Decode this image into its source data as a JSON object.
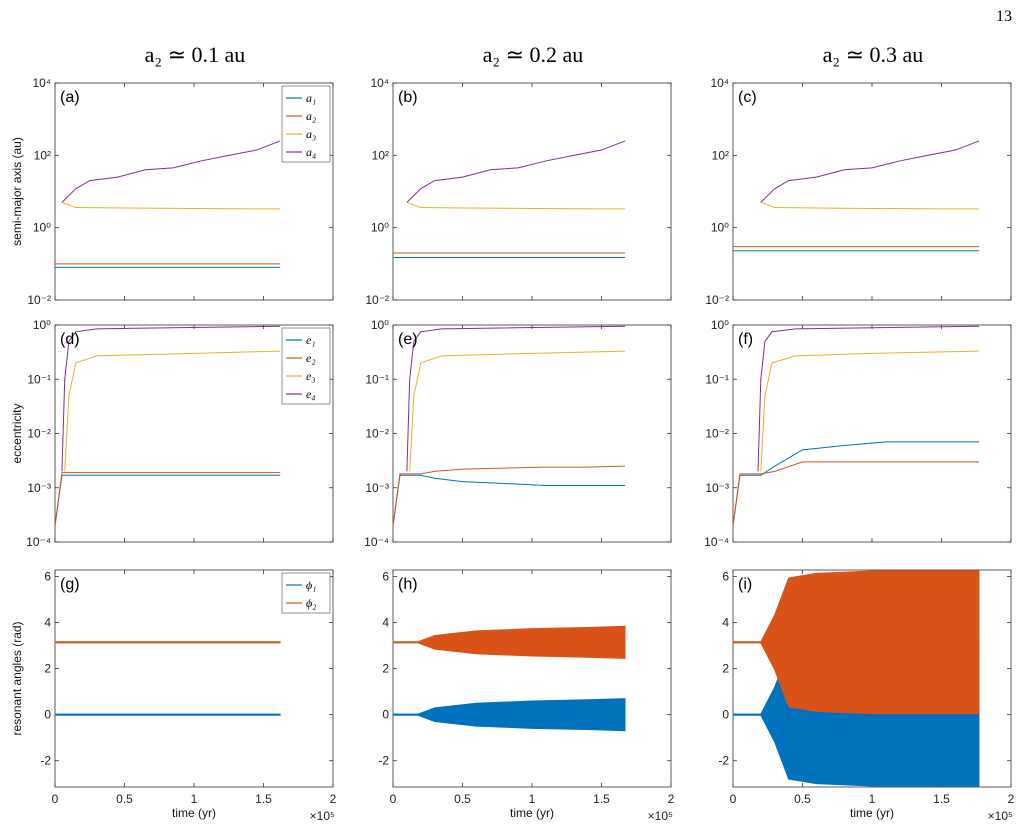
{
  "page_number": "13",
  "column_titles": [
    "a₂ ≃ 0.1 au",
    "a₂ ≃ 0.2 au",
    "a₂ ≃ 0.3 au"
  ],
  "colors": {
    "s1": "#0072BD",
    "s2": "#D95319",
    "s3": "#EDB120",
    "s4": "#7E2F8E"
  },
  "x_axis": {
    "label": "time (yr)",
    "multiplier": "×10⁵",
    "ticks": [
      "0",
      "0.5",
      "1",
      "1.5",
      "2"
    ],
    "lim": [
      0,
      2
    ]
  },
  "chart_data": [
    {
      "id": "a",
      "label": "(a)",
      "type": "line",
      "ylabel": "semi-major axis (au)",
      "yscale": "log",
      "ylim": [
        0.01,
        10000
      ],
      "yticks": [
        "10⁻²",
        "10⁰",
        "10²",
        "10⁴"
      ],
      "legend": [
        "a₁",
        "a₂",
        "a₃",
        "a₄"
      ],
      "series": [
        {
          "name": "a₁",
          "x": [
            0,
            1.62
          ],
          "y": [
            0.08,
            0.08
          ]
        },
        {
          "name": "a₂",
          "x": [
            0,
            1.62
          ],
          "y": [
            0.1,
            0.1
          ]
        },
        {
          "name": "a₃",
          "x": [
            0.05,
            0.15,
            0.5,
            1.0,
            1.5,
            1.62
          ],
          "y": [
            5,
            3.6,
            3.5,
            3.4,
            3.3,
            3.3
          ]
        },
        {
          "name": "a₄",
          "x": [
            0.05,
            0.15,
            0.25,
            0.45,
            0.65,
            0.85,
            1.05,
            1.25,
            1.45,
            1.62
          ],
          "y": [
            5,
            12,
            20,
            25,
            40,
            45,
            70,
            100,
            140,
            250
          ]
        }
      ]
    },
    {
      "id": "b",
      "label": "(b)",
      "type": "line",
      "ylabel": "",
      "yscale": "log",
      "ylim": [
        0.01,
        10000
      ],
      "yticks": [
        "10⁻²",
        "10⁰",
        "10²",
        "10⁴"
      ],
      "series": [
        {
          "name": "a₁",
          "x": [
            0,
            1.67
          ],
          "y": [
            0.15,
            0.15
          ]
        },
        {
          "name": "a₂",
          "x": [
            0,
            1.67
          ],
          "y": [
            0.2,
            0.2
          ]
        },
        {
          "name": "a₃",
          "x": [
            0.1,
            0.2,
            0.5,
            1.0,
            1.5,
            1.67
          ],
          "y": [
            5,
            3.6,
            3.5,
            3.4,
            3.3,
            3.3
          ]
        },
        {
          "name": "a₄",
          "x": [
            0.1,
            0.2,
            0.3,
            0.5,
            0.7,
            0.9,
            1.1,
            1.3,
            1.5,
            1.67
          ],
          "y": [
            5,
            12,
            20,
            25,
            40,
            45,
            70,
            100,
            140,
            250
          ]
        }
      ]
    },
    {
      "id": "c",
      "label": "(c)",
      "type": "line",
      "ylabel": "",
      "yscale": "log",
      "ylim": [
        0.01,
        10000
      ],
      "yticks": [
        "10⁻²",
        "10⁰",
        "10²",
        "10⁴"
      ],
      "series": [
        {
          "name": "a₁",
          "x": [
            0,
            1.77
          ],
          "y": [
            0.23,
            0.23
          ]
        },
        {
          "name": "a₂",
          "x": [
            0,
            1.77
          ],
          "y": [
            0.3,
            0.3
          ]
        },
        {
          "name": "a₃",
          "x": [
            0.2,
            0.3,
            0.6,
            1.0,
            1.5,
            1.77
          ],
          "y": [
            5,
            3.6,
            3.5,
            3.4,
            3.3,
            3.3
          ]
        },
        {
          "name": "a₄",
          "x": [
            0.2,
            0.3,
            0.4,
            0.6,
            0.8,
            1.0,
            1.2,
            1.4,
            1.6,
            1.77
          ],
          "y": [
            5,
            12,
            20,
            25,
            40,
            45,
            70,
            100,
            140,
            250
          ]
        }
      ]
    },
    {
      "id": "d",
      "label": "(d)",
      "type": "line",
      "ylabel": "eccentricity",
      "yscale": "log",
      "ylim": [
        0.0001,
        1
      ],
      "yticks": [
        "10⁻⁴",
        "10⁻³",
        "10⁻²",
        "10⁻¹",
        "10⁰"
      ],
      "legend": [
        "e₁",
        "e₂",
        "e₃",
        "e₄"
      ],
      "series": [
        {
          "name": "e₁",
          "x": [
            0,
            0.05,
            1.62
          ],
          "y": [
            0.0002,
            0.0017,
            0.0017
          ]
        },
        {
          "name": "e₂",
          "x": [
            0,
            0.05,
            1.62
          ],
          "y": [
            0.0002,
            0.0019,
            0.0019
          ]
        },
        {
          "name": "e₃",
          "x": [
            0.07,
            0.1,
            0.15,
            0.3,
            1.0,
            1.62
          ],
          "y": [
            0.002,
            0.05,
            0.2,
            0.27,
            0.3,
            0.33
          ]
        },
        {
          "name": "e₄",
          "x": [
            0.05,
            0.07,
            0.1,
            0.15,
            0.3,
            1.62
          ],
          "y": [
            0.002,
            0.1,
            0.5,
            0.75,
            0.85,
            0.95
          ]
        }
      ]
    },
    {
      "id": "e",
      "label": "(e)",
      "type": "line",
      "ylabel": "",
      "yscale": "log",
      "ylim": [
        0.0001,
        1
      ],
      "yticks": [
        "10⁻⁴",
        "10⁻³",
        "10⁻²",
        "10⁻¹",
        "10⁰"
      ],
      "series": [
        {
          "name": "e₁",
          "x": [
            0,
            0.05,
            0.2,
            0.3,
            0.5,
            0.8,
            1.1,
            1.4,
            1.67
          ],
          "y": [
            0.0002,
            0.0017,
            0.0017,
            0.0015,
            0.0013,
            0.0012,
            0.0011,
            0.0011,
            0.0011
          ]
        },
        {
          "name": "e₂",
          "x": [
            0,
            0.05,
            0.2,
            0.3,
            0.5,
            0.8,
            1.1,
            1.4,
            1.67
          ],
          "y": [
            0.0002,
            0.0018,
            0.0018,
            0.002,
            0.0022,
            0.0023,
            0.0024,
            0.0024,
            0.0025
          ]
        },
        {
          "name": "e₃",
          "x": [
            0.12,
            0.15,
            0.2,
            0.35,
            1.0,
            1.67
          ],
          "y": [
            0.002,
            0.05,
            0.2,
            0.27,
            0.3,
            0.33
          ]
        },
        {
          "name": "e₄",
          "x": [
            0.1,
            0.12,
            0.15,
            0.2,
            0.35,
            1.67
          ],
          "y": [
            0.002,
            0.1,
            0.5,
            0.75,
            0.85,
            0.95
          ]
        }
      ]
    },
    {
      "id": "f",
      "label": "(f)",
      "type": "line",
      "ylabel": "",
      "yscale": "log",
      "ylim": [
        0.0001,
        1
      ],
      "yticks": [
        "10⁻⁴",
        "10⁻³",
        "10⁻²",
        "10⁻¹",
        "10⁰"
      ],
      "series": [
        {
          "name": "e₁",
          "x": [
            0,
            0.05,
            0.2,
            0.3,
            0.5,
            0.8,
            1.1,
            1.4,
            1.77
          ],
          "y": [
            0.0002,
            0.0017,
            0.0017,
            0.0025,
            0.005,
            0.006,
            0.007,
            0.007,
            0.007
          ]
        },
        {
          "name": "e₂",
          "x": [
            0,
            0.05,
            0.2,
            0.3,
            0.5,
            0.8,
            1.1,
            1.4,
            1.77
          ],
          "y": [
            0.0002,
            0.0018,
            0.0018,
            0.002,
            0.003,
            0.003,
            0.003,
            0.003,
            0.003
          ]
        },
        {
          "name": "e₃",
          "x": [
            0.2,
            0.23,
            0.28,
            0.45,
            1.0,
            1.77
          ],
          "y": [
            0.002,
            0.05,
            0.2,
            0.27,
            0.3,
            0.33
          ]
        },
        {
          "name": "e₄",
          "x": [
            0.18,
            0.2,
            0.23,
            0.28,
            0.45,
            1.77
          ],
          "y": [
            0.002,
            0.1,
            0.5,
            0.75,
            0.85,
            0.95
          ]
        }
      ]
    },
    {
      "id": "g",
      "label": "(g)",
      "type": "line",
      "ylabel": "resonant angles (rad)",
      "yscale": "linear",
      "ylim": [
        -3.14,
        6.28
      ],
      "yticks": [
        "-2",
        "0",
        "2",
        "4",
        "6"
      ],
      "legend": [
        "ϕ₁",
        "ϕ₂"
      ],
      "series": [
        {
          "name": "ϕ₁",
          "x": [
            0,
            1.62
          ],
          "y": [
            0,
            0
          ],
          "amplitude": [
            0.03,
            0.03
          ]
        },
        {
          "name": "ϕ₂",
          "x": [
            0,
            1.62
          ],
          "y": [
            3.14,
            3.14
          ],
          "amplitude": [
            0.03,
            0.03
          ]
        }
      ]
    },
    {
      "id": "h",
      "label": "(h)",
      "type": "line",
      "ylabel": "",
      "yscale": "linear",
      "ylim": [
        -3.14,
        6.28
      ],
      "yticks": [
        "-2",
        "0",
        "2",
        "4",
        "6"
      ],
      "series": [
        {
          "name": "ϕ₁",
          "x": [
            0,
            0.18,
            0.3,
            0.6,
            1.0,
            1.4,
            1.67
          ],
          "y": [
            0,
            0,
            0,
            0,
            0,
            0,
            0
          ],
          "amplitude": [
            0.03,
            0.03,
            0.3,
            0.5,
            0.6,
            0.65,
            0.7
          ]
        },
        {
          "name": "ϕ₂",
          "x": [
            0,
            0.18,
            0.3,
            0.6,
            1.0,
            1.4,
            1.67
          ],
          "y": [
            3.14,
            3.14,
            3.14,
            3.14,
            3.14,
            3.14,
            3.14
          ],
          "amplitude": [
            0.03,
            0.03,
            0.3,
            0.5,
            0.6,
            0.65,
            0.7
          ]
        }
      ]
    },
    {
      "id": "i",
      "label": "(i)",
      "type": "line",
      "ylabel": "",
      "yscale": "linear",
      "ylim": [
        -3.14,
        6.28
      ],
      "yticks": [
        "-2",
        "0",
        "2",
        "4",
        "6"
      ],
      "series": [
        {
          "name": "ϕ₁",
          "x": [
            0,
            0.2,
            0.3,
            0.4,
            0.6,
            1.0,
            1.4,
            1.77
          ],
          "y": [
            0,
            0,
            0,
            0,
            0,
            0,
            0,
            0
          ],
          "amplitude": [
            0.03,
            0.03,
            1.2,
            2.8,
            3.0,
            3.1,
            3.1,
            3.1
          ]
        },
        {
          "name": "ϕ₂",
          "x": [
            0,
            0.2,
            0.3,
            0.4,
            0.6,
            1.0,
            1.4,
            1.77
          ],
          "y": [
            3.14,
            3.14,
            3.14,
            3.14,
            3.14,
            3.14,
            3.14,
            3.14
          ],
          "amplitude": [
            0.03,
            0.03,
            1.2,
            2.8,
            3.0,
            3.1,
            3.1,
            3.1
          ]
        }
      ]
    }
  ]
}
